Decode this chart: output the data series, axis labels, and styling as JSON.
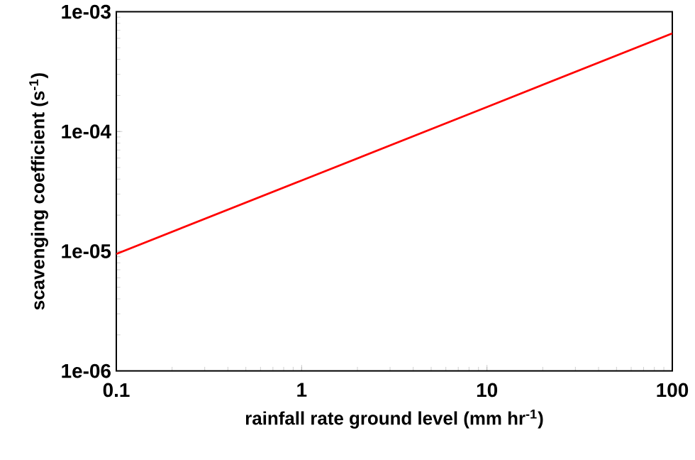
{
  "chart_data": {
    "type": "line",
    "xlabel": "rainfall rate ground level (mm hr$^{-1}$)",
    "ylabel": "scavenging coefficient (s$^{-1}$)",
    "log": "xy",
    "grid": false,
    "marker": "none",
    "line_style": "solid",
    "x": [
      0.1,
      1,
      10,
      100
    ],
    "series": [
      {
        "color": "#ff0000",
        "values": [
          9.5e-06,
          3.9e-05,
          0.00016,
          0.00066
        ]
      }
    ],
    "xlim": [
      0.1,
      100
    ],
    "ylim": [
      1e-06,
      0.001
    ],
    "xticks": [
      0.1,
      1,
      10,
      100
    ],
    "yticks": [
      {
        "value": 1e-06,
        "label": "1e-06"
      },
      {
        "value": 1e-05,
        "label": "1e-05"
      },
      {
        "value": 0.0001,
        "label": "1e-04"
      },
      {
        "value": 0.001,
        "label": "1e-03"
      }
    ]
  }
}
